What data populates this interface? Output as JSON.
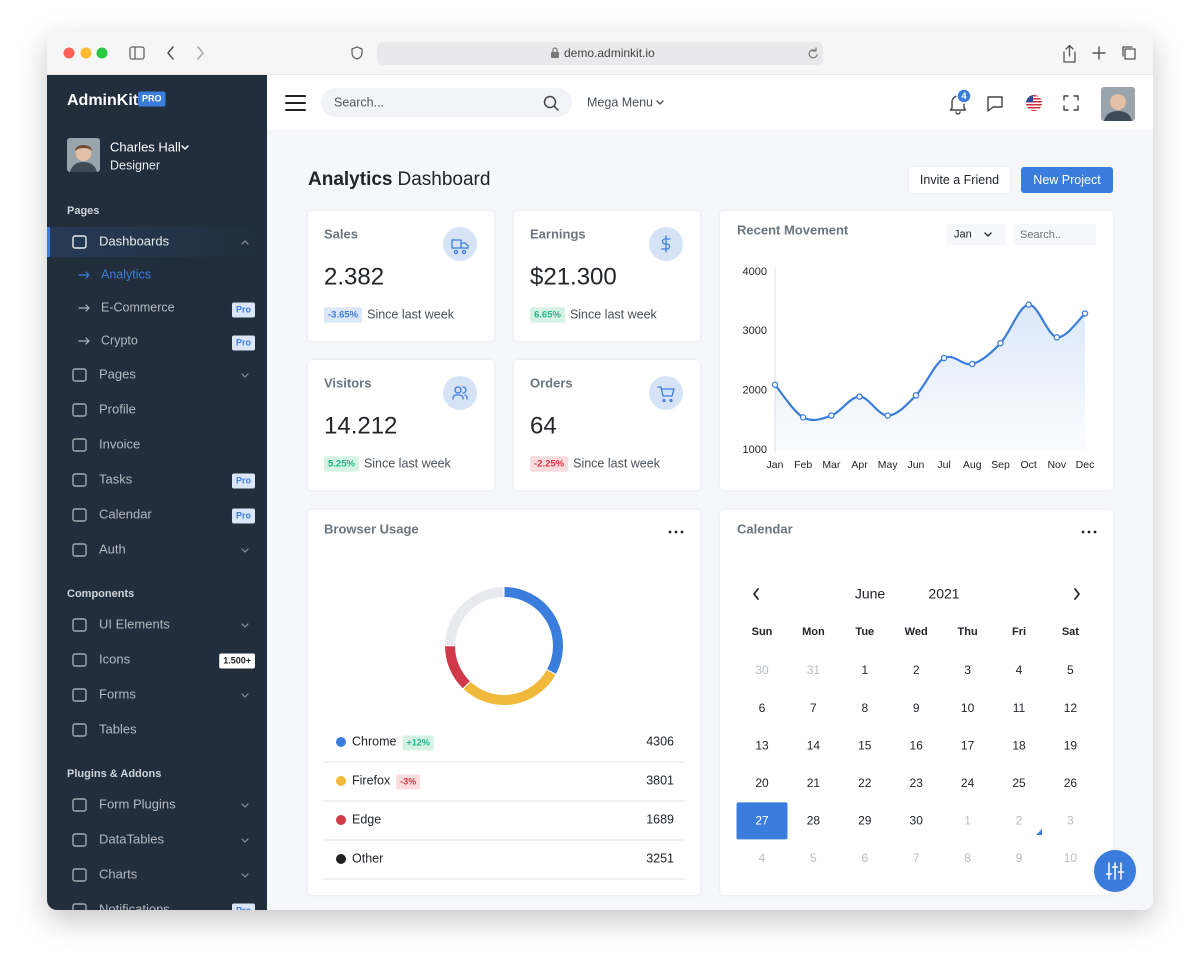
{
  "browser": {
    "url": "demo.adminkit.io"
  },
  "sidebar": {
    "brand": "AdminKit",
    "brand_badge": "PRO",
    "user": {
      "name": "Charles Hall",
      "role": "Designer"
    },
    "sections": [
      {
        "title": "Pages",
        "items": [
          {
            "label": "Dashboards",
            "active": true,
            "expandable": true,
            "children": [
              {
                "label": "Analytics",
                "active": true
              },
              {
                "label": "E-Commerce",
                "badge": "Pro",
                "badge_style": "primary"
              },
              {
                "label": "Crypto",
                "badge": "Pro",
                "badge_style": "primary"
              }
            ]
          },
          {
            "label": "Pages",
            "expandable": true
          },
          {
            "label": "Profile"
          },
          {
            "label": "Invoice"
          },
          {
            "label": "Tasks",
            "badge": "Pro",
            "badge_style": "primary"
          },
          {
            "label": "Calendar",
            "badge": "Pro",
            "badge_style": "primary"
          },
          {
            "label": "Auth",
            "expandable": true
          }
        ]
      },
      {
        "title": "Components",
        "items": [
          {
            "label": "UI Elements",
            "expandable": true
          },
          {
            "label": "Icons",
            "badge": "1.500+",
            "badge_style": "light"
          },
          {
            "label": "Forms",
            "expandable": true
          },
          {
            "label": "Tables"
          }
        ]
      },
      {
        "title": "Plugins & Addons",
        "items": [
          {
            "label": "Form Plugins",
            "expandable": true
          },
          {
            "label": "DataTables",
            "expandable": true
          },
          {
            "label": "Charts",
            "expandable": true
          },
          {
            "label": "Notifications",
            "badge": "Pro",
            "badge_style": "primary"
          }
        ]
      }
    ]
  },
  "topbar": {
    "search_placeholder": "Search...",
    "mega_menu": "Mega Menu",
    "notifications": 4
  },
  "header": {
    "title_strong": "Analytics",
    "title_rest": "Dashboard",
    "buttons": [
      "Invite a Friend",
      "New Project"
    ]
  },
  "stats": [
    {
      "title": "Sales",
      "value": "2.382",
      "change": "-3.65%",
      "tone": "primary",
      "note": "Since last week"
    },
    {
      "title": "Earnings",
      "value": "$21.300",
      "change": "6.65%",
      "tone": "success",
      "note": "Since last week"
    },
    {
      "title": "Visitors",
      "value": "14.212",
      "change": "5.25%",
      "tone": "success",
      "note": "Since last week"
    },
    {
      "title": "Orders",
      "value": "64",
      "change": "-2.25%",
      "tone": "danger",
      "note": "Since last week"
    }
  ],
  "chart_data": {
    "type": "line",
    "title": "Recent Movement",
    "categories": [
      "Jan",
      "Feb",
      "Mar",
      "Apr",
      "May",
      "Jun",
      "Jul",
      "Aug",
      "Sep",
      "Oct",
      "Nov",
      "Dec"
    ],
    "values": [
      2100,
      1550,
      1580,
      1900,
      1580,
      1920,
      2550,
      2450,
      2800,
      3450,
      2900,
      3300
    ],
    "color": "#3b7ddd",
    "ylim": [
      1000,
      4000
    ],
    "yticks": [
      1000,
      2000,
      3000,
      4000
    ],
    "grid": false
  },
  "recent_movement": {
    "filter": "Jan",
    "search_placeholder": "Search.."
  },
  "browser_usage": {
    "title": "Browser Usage",
    "rows": [
      {
        "name": "Chrome",
        "change": "+12%",
        "tone": "success",
        "value": 4306,
        "color": "#3b7ddd",
        "arc_color": "#3b7ddd"
      },
      {
        "name": "Firefox",
        "change": "-3%",
        "tone": "danger",
        "value": 3801,
        "color": "#f0b93b",
        "arc_color": "#f0b93b"
      },
      {
        "name": "Edge",
        "value": 1689,
        "color": "#d1384a",
        "arc_color": "#d1384a"
      },
      {
        "name": "Other",
        "value": 3251,
        "color": "#222222",
        "arc_color": "#e8eaed"
      }
    ]
  },
  "calendar": {
    "title": "Calendar",
    "month": "June",
    "year": 2021,
    "weekdays": [
      "Sun",
      "Mon",
      "Tue",
      "Wed",
      "Thu",
      "Fri",
      "Sat"
    ],
    "weeks": [
      [
        30,
        31,
        1,
        2,
        3,
        4,
        5
      ],
      [
        6,
        7,
        8,
        9,
        10,
        11,
        12
      ],
      [
        13,
        14,
        15,
        16,
        17,
        18,
        19
      ],
      [
        20,
        21,
        22,
        23,
        24,
        25,
        26
      ],
      [
        27,
        28,
        29,
        30,
        1,
        2,
        3
      ],
      [
        4,
        5,
        6,
        7,
        8,
        9,
        10
      ]
    ],
    "selected": 27
  }
}
